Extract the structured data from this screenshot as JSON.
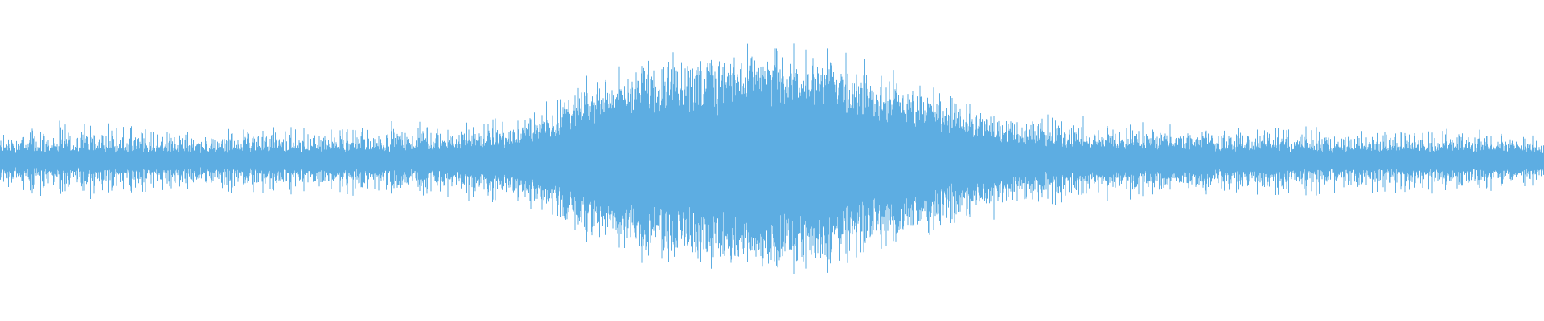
{
  "waveform": {
    "color": "#5DADE2",
    "background": "#ffffff",
    "peak_envelope": [
      0.24,
      0.31,
      0.28,
      0.24,
      0.28,
      0.28,
      0.31,
      0.31,
      0.38,
      0.62,
      0.83,
      0.86,
      0.9,
      0.86,
      0.69,
      0.52,
      0.41,
      0.34,
      0.31,
      0.28,
      0.28,
      0.24,
      0.28,
      0.24,
      0.21
    ],
    "dense_envelope": [
      0.1,
      0.11,
      0.11,
      0.1,
      0.11,
      0.12,
      0.13,
      0.14,
      0.18,
      0.4,
      0.62,
      0.68,
      0.7,
      0.66,
      0.45,
      0.3,
      0.2,
      0.16,
      0.14,
      0.13,
      0.12,
      0.11,
      0.12,
      0.12,
      0.1
    ]
  }
}
